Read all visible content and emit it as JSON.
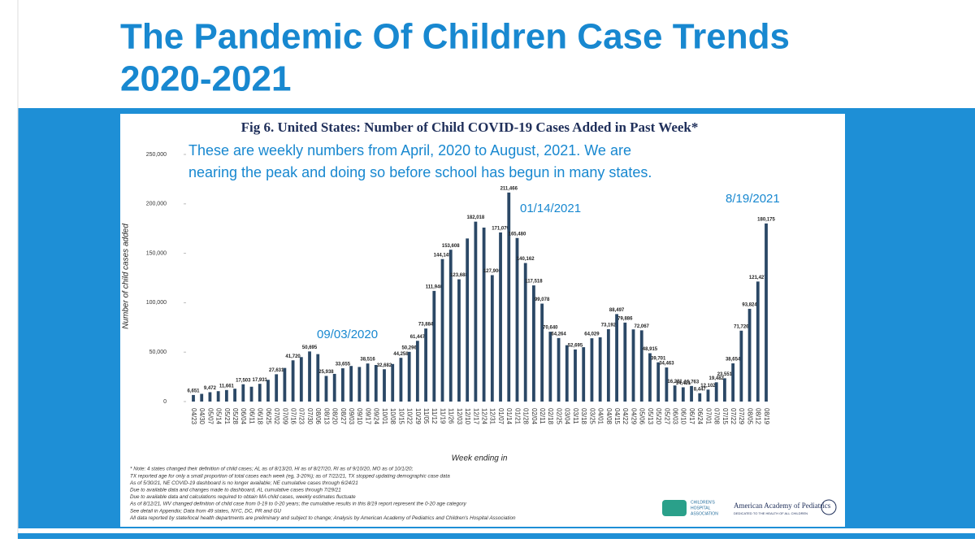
{
  "slide_title": [
    "The Pandemic Of Children Case Trends",
    "2020-2021"
  ],
  "chart_data": {
    "type": "bar",
    "title": "Fig 6. United States: Number of Child COVID-19 Cases Added in Past Week*",
    "subtitle": [
      "These are weekly numbers from April, 2020 to August, 2021. We are",
      "nearing the peak and doing so before school has begun in many states."
    ],
    "annotations": [
      "09/03/2020",
      "01/14/2021",
      "8/19/2021"
    ],
    "x_label": "Week ending in",
    "y_label": "Number of child cases added",
    "categories": [
      "04/23",
      "04/30",
      "05/07",
      "05/14",
      "05/21",
      "05/28",
      "06/04",
      "06/11",
      "06/18",
      "06/25",
      "07/02",
      "07/09",
      "07/16",
      "07/23",
      "07/30",
      "08/06",
      "08/13",
      "08/20",
      "08/27",
      "09/03",
      "09/10",
      "09/17",
      "09/24",
      "10/01",
      "10/08",
      "10/15",
      "10/22",
      "10/29",
      "11/05",
      "11/12",
      "11/19",
      "11/26",
      "12/03",
      "12/10",
      "12/17",
      "12/24",
      "12/31",
      "01/07",
      "01/14",
      "01/21",
      "01/28",
      "02/04",
      "02/11",
      "02/18",
      "02/25",
      "03/04",
      "03/11",
      "03/18",
      "03/25",
      "04/01",
      "04/08",
      "04/15",
      "04/22",
      "04/29",
      "05/06",
      "05/13",
      "05/20",
      "05/27",
      "06/03",
      "06/10",
      "06/17",
      "06/24",
      "07/01",
      "07/08",
      "07/15",
      "07/22",
      "07/29",
      "08/05",
      "08/12",
      "08/19"
    ],
    "values": [
      6651,
      7800,
      9472,
      10500,
      11661,
      13000,
      17503,
      15000,
      17931,
      22000,
      27631,
      34000,
      41720,
      45000,
      50695,
      48000,
      25938,
      28000,
      33655,
      36000,
      35000,
      38516,
      37000,
      32682,
      38000,
      44258,
      50296,
      61447,
      73884,
      111946,
      144145,
      153608,
      123688,
      165000,
      182018,
      176000,
      127906,
      171079,
      211466,
      165480,
      140162,
      117518,
      99078,
      70640,
      64264,
      57000,
      52695,
      55000,
      64029,
      65000,
      73192,
      88497,
      79886,
      73000,
      72067,
      48915,
      39701,
      34463,
      16281,
      14421,
      15763,
      8447,
      12102,
      19482,
      23551,
      38654,
      71726,
      93824,
      121427,
      180175
    ],
    "value_labels": [
      "6,651",
      null,
      "9,472",
      null,
      "11,661",
      null,
      "17,503",
      null,
      "17,931",
      null,
      "27,631",
      null,
      "41,720",
      null,
      "50,695",
      null,
      "25,938",
      null,
      "33,655",
      null,
      null,
      "38,516",
      null,
      "32,682",
      null,
      "44,258",
      "50,296",
      "61,447",
      "73,884",
      "111,946",
      "144,145",
      "153,608",
      "123,688",
      null,
      "182,018",
      null,
      "127,906",
      "171,079",
      "211,466",
      "165,480",
      "140,162",
      "117,518",
      "99,078",
      "70,640",
      "64,264",
      null,
      "52,695",
      null,
      "64,029",
      null,
      "73,192",
      "88,497",
      "79,886",
      null,
      "72,067",
      "48,915",
      "39,701",
      "34,463",
      "16,281",
      "14,421",
      "15,763",
      "8,447",
      "12,102",
      "19,482",
      "23,551",
      "38,654",
      "71,726",
      "93,824",
      "121,427",
      "180,175"
    ],
    "color": "#2b4866",
    "ylim": [
      0,
      250000
    ],
    "yticks": [
      0,
      {
        "value": 50000,
        "label": "50,000"
      },
      {
        "value": 100000,
        "label": "100,000"
      },
      {
        "value": 150000,
        "label": "150,000"
      },
      {
        "value": 200000,
        "label": "200,000"
      },
      {
        "value": 250000,
        "label": "250,000"
      }
    ],
    "notes": [
      "* Note: 4 states changed their definition of child cases; AL as of 8/13/20, HI as of 8/27/20, RI as of 9/10/20, MO as of 10/1/20;",
      "TX reported age for only a small proportion of total cases each week (eg, 3-20%); as of 7/22/21, TX stopped updating demographic case data",
      "As of 5/30/21, NE COVID-19 dashboard is no longer available; NE cumulative cases through 6/24/21",
      "Due to available data and changes made to dashboard, AL cumulative cases through 7/29/21",
      "Due to available data and calculations required to obtain MA child cases, weekly estimates fluctuate",
      "As of 8/12/21, WV changed definition of child case from 0-19 to 0-20 years; the cumulative results in this 8/19 report represent the 0-20 age category",
      "See detail in Appendix; Data from 49 states, NYC, DC, PR and GU",
      "All data reported by state/local health departments are preliminary and subject to change; Analysis by American Academy of Pediatrics and Children's Hospital Association"
    ]
  },
  "logos": [
    "CHILDREN'S",
    "HOSPITAL",
    "ASSOCIATION",
    "American Academy of Pediatrics",
    "DEDICATED TO THE HEALTH OF ALL CHILDREN"
  ]
}
